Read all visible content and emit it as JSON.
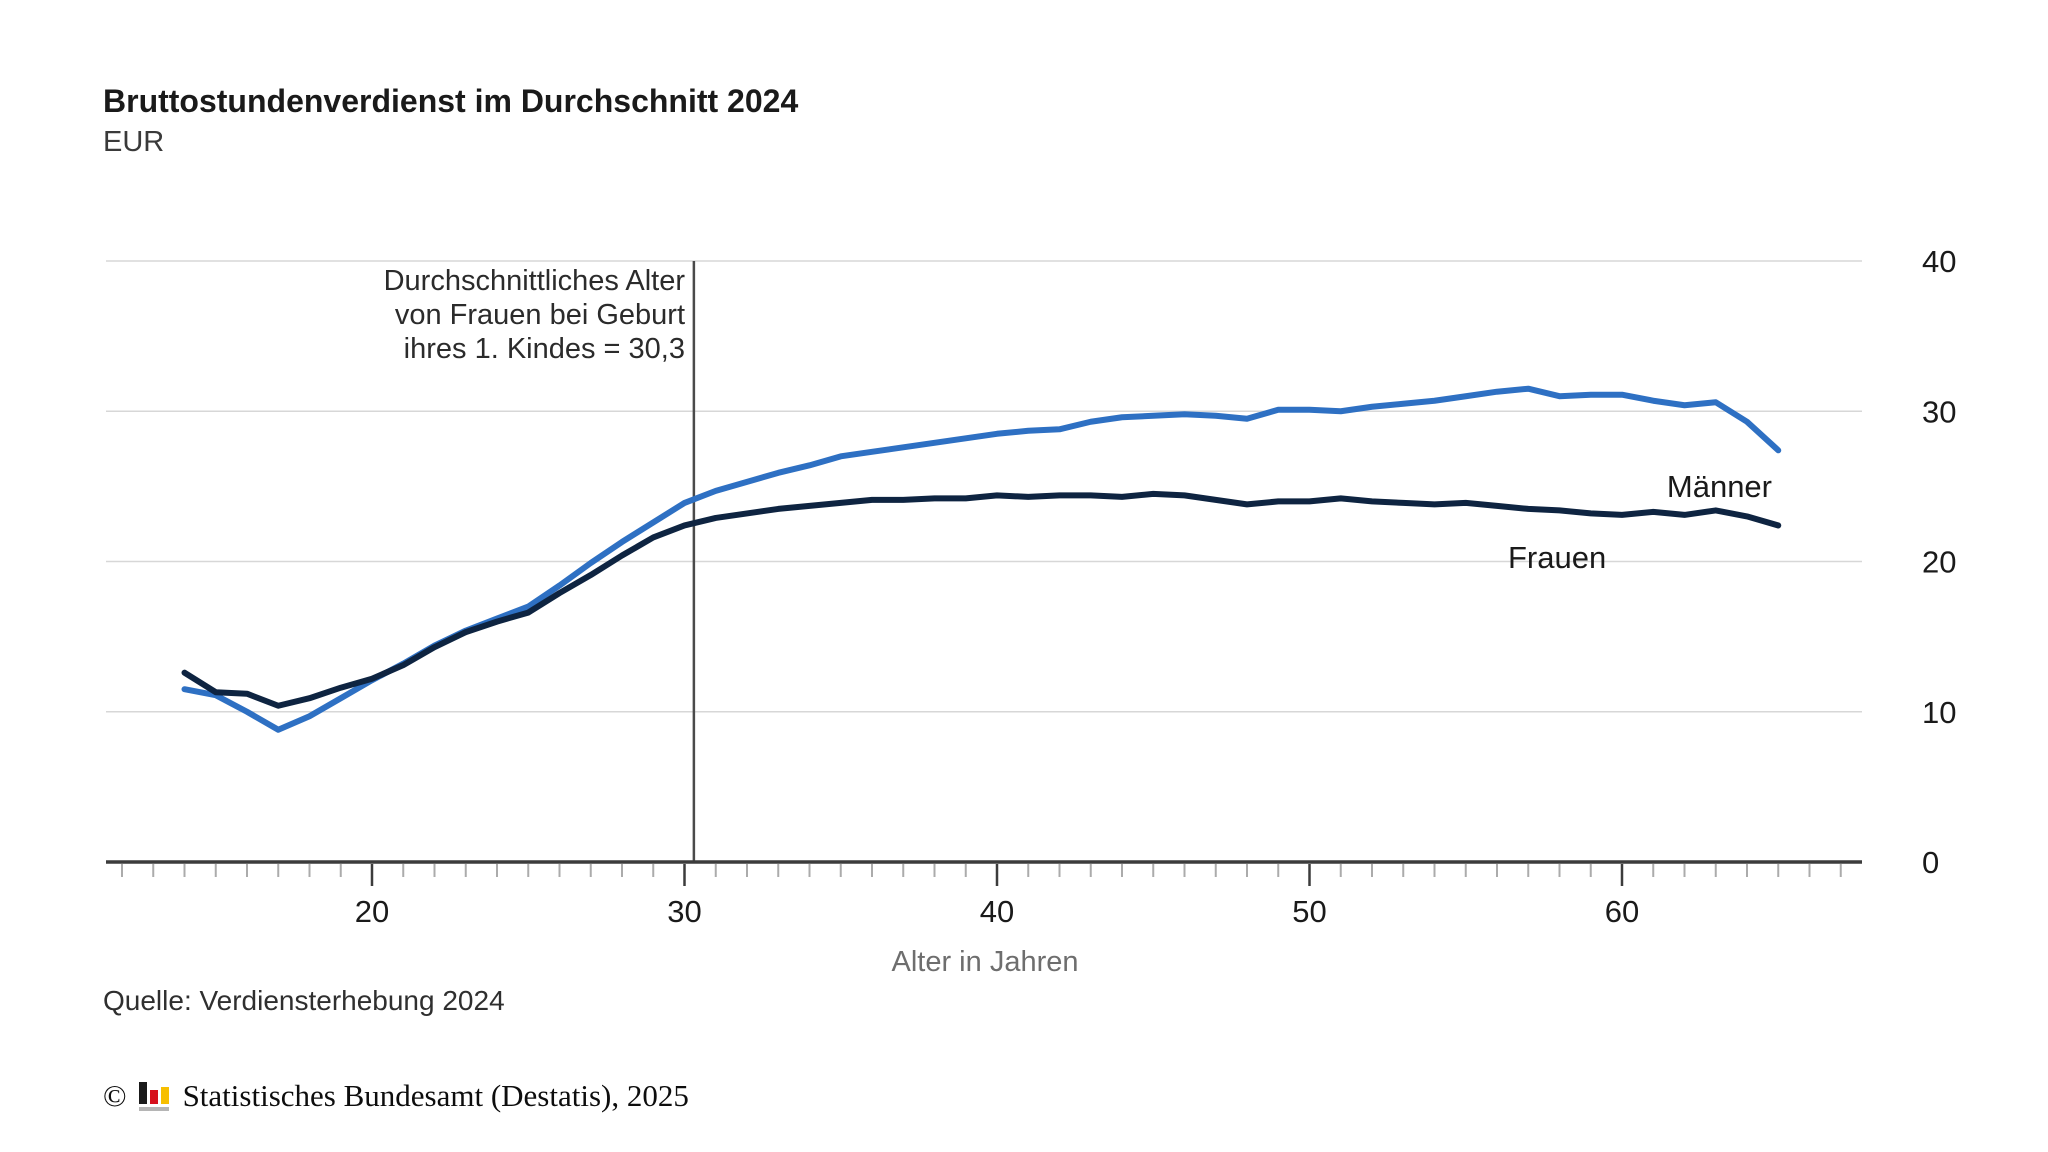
{
  "header": {
    "title": "Bruttostundenverdienst im Durchschnitt 2024",
    "subtitle": "EUR"
  },
  "annotation": {
    "lines": [
      "Durchschnittliches Alter",
      "von Frauen bei Geburt",
      "ihres 1. Kindes = 30,3"
    ],
    "marker_age": 30.3
  },
  "chart_data": {
    "type": "line",
    "title": "Bruttostundenverdienst im Durchschnitt 2024",
    "ylabel": "EUR",
    "xlabel": "Alter in Jahren",
    "ylim": [
      0,
      40
    ],
    "xlim": [
      11.5,
      67.7
    ],
    "y_ticks": [
      0,
      10,
      20,
      30,
      40
    ],
    "x_ticks": [
      20,
      30,
      40,
      50,
      60
    ],
    "minor_tick_age_start": 12,
    "minor_tick_age_end": 67,
    "grid": "horizontal",
    "y_axis_side": "right",
    "legend_position": "inline-labels",
    "vline": {
      "x": 30.3,
      "color": "#4a4a4a"
    },
    "x": [
      14,
      15,
      16,
      17,
      18,
      19,
      20,
      21,
      22,
      23,
      24,
      25,
      26,
      27,
      28,
      29,
      30,
      31,
      32,
      33,
      34,
      35,
      36,
      37,
      38,
      39,
      40,
      41,
      42,
      43,
      44,
      45,
      46,
      47,
      48,
      49,
      50,
      51,
      52,
      53,
      54,
      55,
      56,
      57,
      58,
      59,
      60,
      61,
      62,
      63,
      64,
      65
    ],
    "series": [
      {
        "name": "Männer",
        "color": "#2e70c3",
        "label_color": "#3876d6",
        "values": [
          11.5,
          11.1,
          10.0,
          8.8,
          9.7,
          10.9,
          12.1,
          13.2,
          14.4,
          15.4,
          16.2,
          17.0,
          18.4,
          19.9,
          21.3,
          22.6,
          23.9,
          24.7,
          25.3,
          25.9,
          26.4,
          27.0,
          27.3,
          27.6,
          27.9,
          28.2,
          28.5,
          28.7,
          28.8,
          29.3,
          29.6,
          29.7,
          29.8,
          29.7,
          29.5,
          30.1,
          30.1,
          30.0,
          30.3,
          30.5,
          30.7,
          31.0,
          31.3,
          31.5,
          31.0,
          31.1,
          31.1,
          30.7,
          30.4,
          30.6,
          29.3,
          27.4
        ]
      },
      {
        "name": "Frauen",
        "color": "#0e2441",
        "label_color": "#0e2441",
        "values": [
          12.6,
          11.3,
          11.2,
          10.4,
          10.9,
          11.6,
          12.2,
          13.1,
          14.3,
          15.3,
          16.0,
          16.6,
          17.9,
          19.1,
          20.4,
          21.6,
          22.4,
          22.9,
          23.2,
          23.5,
          23.7,
          23.9,
          24.1,
          24.1,
          24.2,
          24.2,
          24.4,
          24.3,
          24.4,
          24.4,
          24.3,
          24.5,
          24.4,
          24.1,
          23.8,
          24.0,
          24.0,
          24.2,
          24.0,
          23.9,
          23.8,
          23.9,
          23.7,
          23.5,
          23.4,
          23.2,
          23.1,
          23.3,
          23.1,
          23.4,
          23.0,
          22.4
        ]
      }
    ],
    "colors": {
      "gridline": "#d7d7d7",
      "axis": "#3c3c3c",
      "minor_tick": "#ababab",
      "tick_label": "#1a1a1a"
    }
  },
  "source": {
    "text": "Quelle: Verdiensterhebung 2024"
  },
  "footer": {
    "copyright_symbol": "©",
    "text": "Statistisches Bundesamt (Destatis), 2025",
    "logo_colors": {
      "bar1": "#1a1a1a",
      "bar2": "#d6101c",
      "bar3": "#f7bf00",
      "base": "#b5b5b5"
    }
  }
}
